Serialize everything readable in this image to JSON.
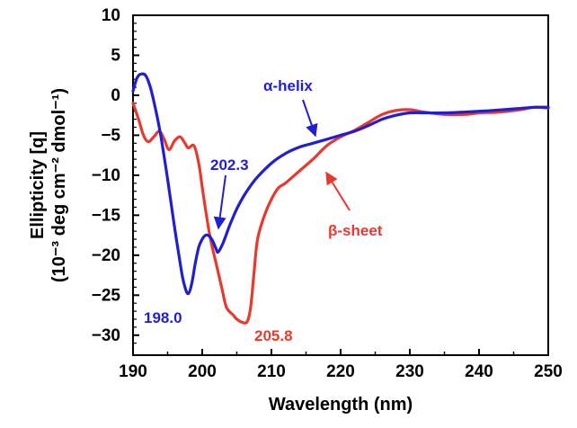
{
  "chart_data": {
    "type": "line",
    "xlabel": "Wavelength  (nm)",
    "ylabel_line1": "Ellipticity [q]",
    "ylabel_line2": "(10⁻³ deg cm⁻² dmol⁻¹)",
    "xlim": [
      190,
      250
    ],
    "ylim": [
      -32.5,
      10
    ],
    "x_ticks": [
      190,
      200,
      210,
      220,
      230,
      240,
      250
    ],
    "y_ticks": [
      10,
      5,
      0,
      -5,
      -10,
      -15,
      -20,
      -25,
      -30
    ],
    "y_tick_labels": [
      "10",
      "5",
      "0",
      "−5",
      "−10",
      "−15",
      "−20",
      "−25",
      "−30"
    ],
    "grid": false,
    "series": [
      {
        "name": "α-helix",
        "color": "#1f1fd1",
        "x": [
          190,
          190.5,
          191,
          191.8,
          192.5,
          193.2,
          194,
          195,
          196,
          197,
          197.5,
          198,
          198.5,
          199,
          199.5,
          200,
          200.5,
          201,
          201.5,
          202,
          202.3,
          203,
          204,
          205,
          206,
          207,
          208,
          210,
          212,
          214,
          216,
          218,
          220,
          222,
          224,
          226,
          228,
          230,
          232,
          235,
          238,
          240,
          242,
          245,
          248,
          250
        ],
        "y": [
          0.5,
          2.0,
          2.6,
          2.5,
          1.0,
          -1.5,
          -5.0,
          -10.5,
          -16.5,
          -22.0,
          -24.0,
          -24.8,
          -23.5,
          -21.0,
          -19.0,
          -18.0,
          -17.5,
          -17.6,
          -18.2,
          -19.2,
          -19.6,
          -18.5,
          -16.2,
          -14.2,
          -12.6,
          -11.3,
          -10.2,
          -8.5,
          -7.3,
          -6.5,
          -6.0,
          -5.5,
          -5.0,
          -4.5,
          -3.8,
          -3.0,
          -2.5,
          -2.2,
          -2.2,
          -2.2,
          -2.1,
          -2.0,
          -1.9,
          -1.7,
          -1.5,
          -1.5
        ]
      },
      {
        "name": "β-sheet",
        "color": "#e8392f",
        "x": [
          190,
          190.8,
          191.5,
          192.2,
          193,
          193.8,
          194.5,
          195.2,
          196,
          196.8,
          197.5,
          198,
          198.8,
          199.5,
          200,
          200.7,
          201.2,
          202,
          202.8,
          203.5,
          204.5,
          205,
          205.8,
          206.5,
          207,
          207.5,
          208,
          209,
          210,
          211,
          212,
          214,
          216,
          218,
          220,
          222,
          224,
          226,
          228,
          230,
          232,
          235,
          238,
          240,
          243,
          246,
          248,
          250
        ],
        "y": [
          -1.0,
          -3.0,
          -5.0,
          -5.8,
          -5.2,
          -4.5,
          -5.5,
          -6.8,
          -5.7,
          -5.2,
          -6.0,
          -6.6,
          -6.3,
          -8.5,
          -11.5,
          -15.5,
          -18.0,
          -21.0,
          -24.0,
          -26.5,
          -27.5,
          -28.0,
          -28.4,
          -28.3,
          -26.5,
          -22.0,
          -18.0,
          -15.0,
          -13.0,
          -11.6,
          -11.0,
          -9.5,
          -8.0,
          -6.3,
          -5.2,
          -4.4,
          -3.4,
          -2.4,
          -1.9,
          -1.8,
          -2.1,
          -2.4,
          -2.4,
          -2.2,
          -2.1,
          -1.8,
          -1.5,
          -1.6
        ]
      }
    ],
    "annotations": [
      {
        "text": "α-helix",
        "color": "#1f1fd1"
      },
      {
        "text": "202.3",
        "color": "#1f1fd1"
      },
      {
        "text": "198.0",
        "color": "#1f1fd1"
      },
      {
        "text": "β-sheet",
        "color": "#e8392f"
      },
      {
        "text": "205.8",
        "color": "#e8392f"
      }
    ]
  }
}
